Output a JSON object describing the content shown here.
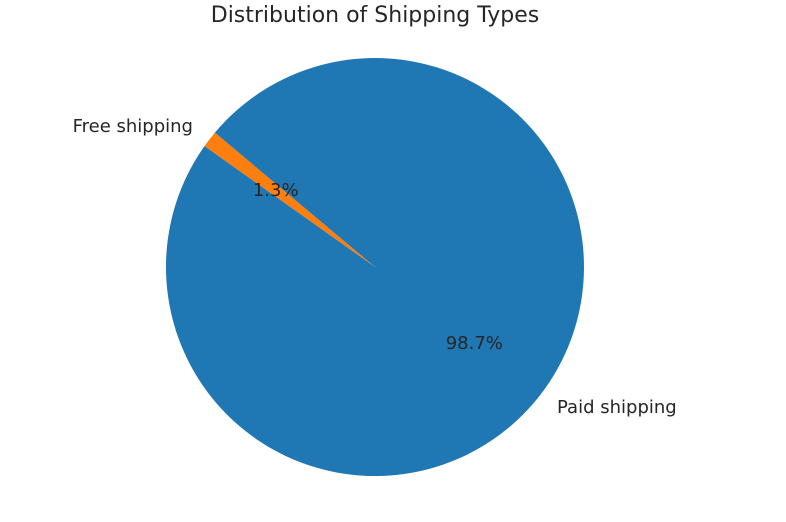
{
  "chart_data": {
    "type": "pie",
    "title": "Distribution of Shipping Types",
    "start_angle_deg": 140,
    "direction": "counterclockwise",
    "slices": [
      {
        "label": "Free shipping",
        "value": 1.3,
        "pct_label": "1.3%",
        "color": "#ff7f0e"
      },
      {
        "label": "Paid shipping",
        "value": 98.7,
        "pct_label": "98.7%",
        "color": "#1f77b4"
      }
    ],
    "legend": "none"
  }
}
